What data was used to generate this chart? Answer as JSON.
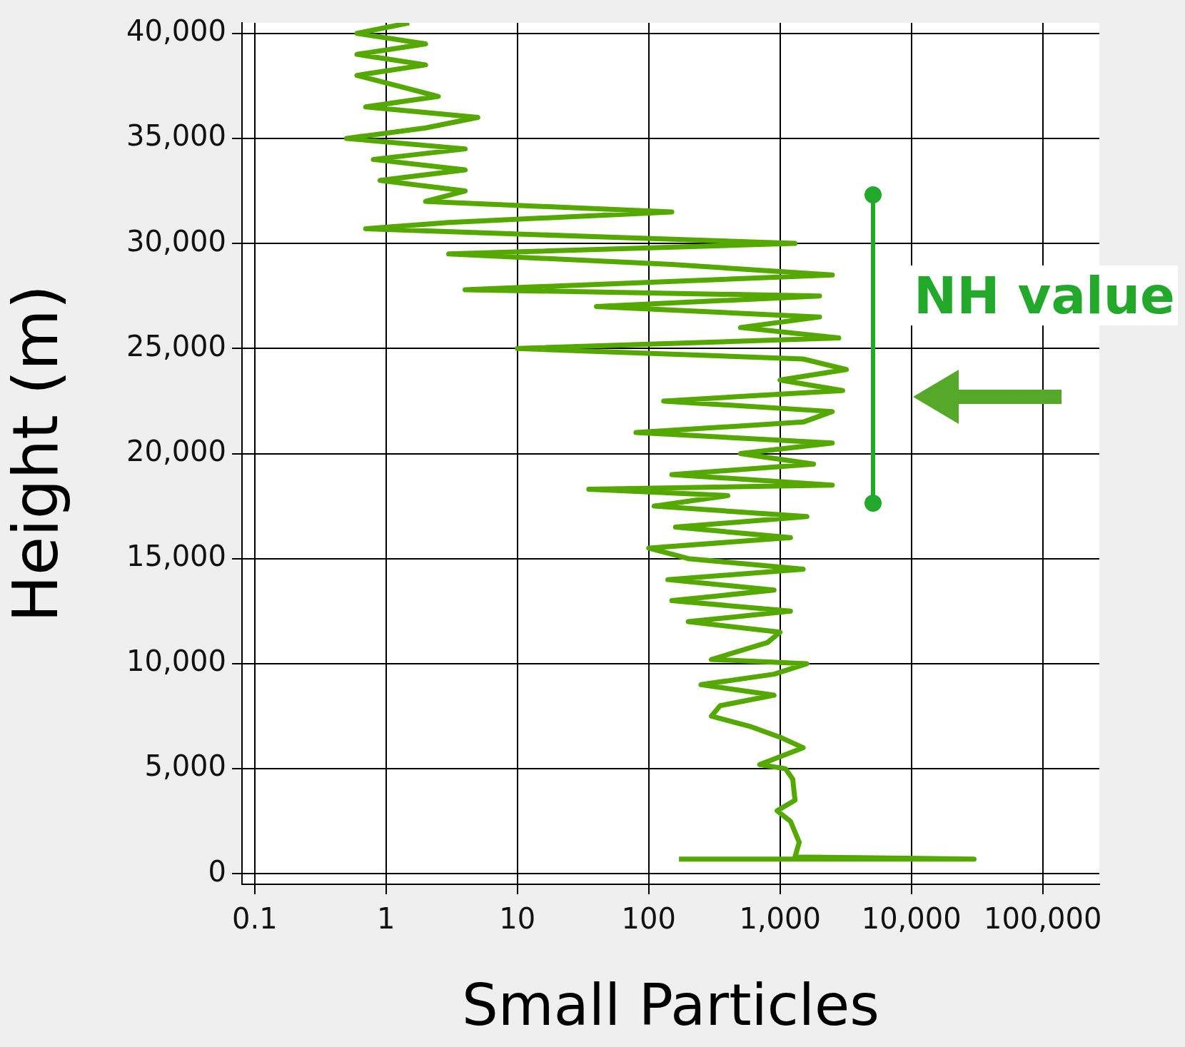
{
  "chart_data": {
    "type": "line",
    "xlabel": "Small Particles",
    "ylabel": "Height (m)",
    "log": "x",
    "grid": true,
    "color": "#55a800",
    "x": [
      170,
      30000,
      1300,
      1400,
      1200,
      950,
      1300,
      1250,
      1100,
      700,
      1500,
      1000,
      600,
      300,
      350,
      900,
      250,
      900,
      1600,
      300,
      800,
      1000,
      200,
      1200,
      150,
      900,
      140,
      1500,
      200,
      100,
      1200,
      160,
      1600,
      110,
      400,
      35,
      2500,
      150,
      1800,
      500,
      2500,
      80,
      1500,
      2500,
      130,
      3000,
      1000,
      3200,
      1500,
      10,
      2800,
      500,
      2000,
      40,
      2000,
      4,
      2500,
      150,
      3,
      1300,
      50,
      0.7,
      3,
      150,
      2,
      4,
      0.9,
      4,
      0.8,
      4,
      0.5,
      2,
      5,
      0.7,
      2.5,
      0.6,
      2,
      0.6,
      2,
      0.6,
      1.5
    ],
    "values": [
      700,
      700,
      800,
      1500,
      2500,
      3000,
      3500,
      4500,
      5000,
      5200,
      6000,
      6500,
      7000,
      7500,
      8000,
      8500,
      9000,
      9500,
      10000,
      10200,
      11000,
      11500,
      12000,
      12500,
      13000,
      13500,
      14000,
      14500,
      15000,
      15500,
      16000,
      16500,
      17000,
      17500,
      18000,
      18300,
      18500,
      19000,
      19500,
      20000,
      20500,
      21000,
      21500,
      22000,
      22500,
      23000,
      23500,
      24000,
      24500,
      25000,
      25500,
      26000,
      26500,
      27000,
      27500,
      27800,
      28500,
      29000,
      29500,
      30000,
      30300,
      30700,
      31000,
      31500,
      32000,
      32500,
      33000,
      33500,
      34000,
      34500,
      35000,
      35500,
      36000,
      36500,
      37000,
      38000,
      38500,
      39000,
      39500,
      40000,
      40500
    ],
    "xlim": [
      0.08,
      270000
    ],
    "ylim": [
      -500,
      40500
    ],
    "xticks": [
      0.1,
      1,
      10,
      100,
      {
        "value": 1000,
        "label": "1,000"
      },
      {
        "value": 10000,
        "label": "10,000"
      },
      {
        "value": 100000,
        "label": "100,000"
      }
    ],
    "yticks": [
      0,
      {
        "value": 5000,
        "label": "5,000"
      },
      {
        "value": 10000,
        "label": "10,000"
      },
      {
        "value": 15000,
        "label": "15,000"
      },
      {
        "value": 20000,
        "label": "20,000"
      },
      {
        "value": 25000,
        "label": "25,000"
      },
      {
        "value": 30000,
        "label": "30,000"
      },
      {
        "value": 35000,
        "label": "35,000"
      },
      {
        "value": 40000,
        "label": "40,000"
      }
    ],
    "annotations": [
      "NH value"
    ]
  }
}
